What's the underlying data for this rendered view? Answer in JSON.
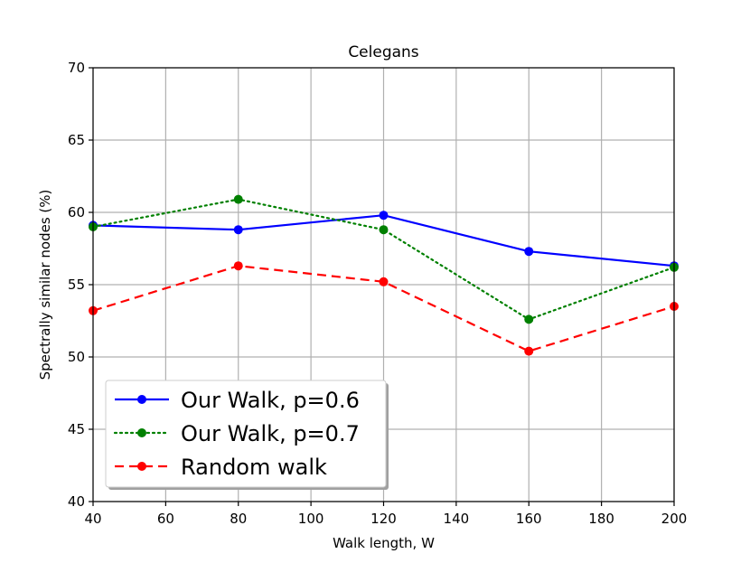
{
  "chart_data": {
    "type": "line",
    "title": "Celegans",
    "xlabel": "Walk length, W",
    "ylabel": "Spectrally similar nodes (%)",
    "xlim": [
      40,
      200
    ],
    "ylim": [
      40,
      70
    ],
    "xticks": [
      40,
      60,
      80,
      100,
      120,
      140,
      160,
      180,
      200
    ],
    "yticks": [
      40,
      45,
      50,
      55,
      60,
      65,
      70
    ],
    "grid": true,
    "legend_position": "lower-left",
    "x": [
      40,
      80,
      120,
      160,
      200
    ],
    "series": [
      {
        "name": "Our Walk, p=0.6",
        "values": [
          59.1,
          58.8,
          59.8,
          57.3,
          56.3
        ],
        "color": "#0000ff",
        "linestyle": "solid",
        "marker": "circle"
      },
      {
        "name": "Our Walk, p=0.7",
        "values": [
          59.0,
          60.9,
          58.8,
          52.6,
          56.2
        ],
        "color": "#008000",
        "linestyle": "dotted",
        "marker": "circle"
      },
      {
        "name": "Random walk",
        "values": [
          53.2,
          56.3,
          55.2,
          50.4,
          53.5
        ],
        "color": "#ff0000",
        "linestyle": "dashed",
        "marker": "circle"
      }
    ]
  }
}
